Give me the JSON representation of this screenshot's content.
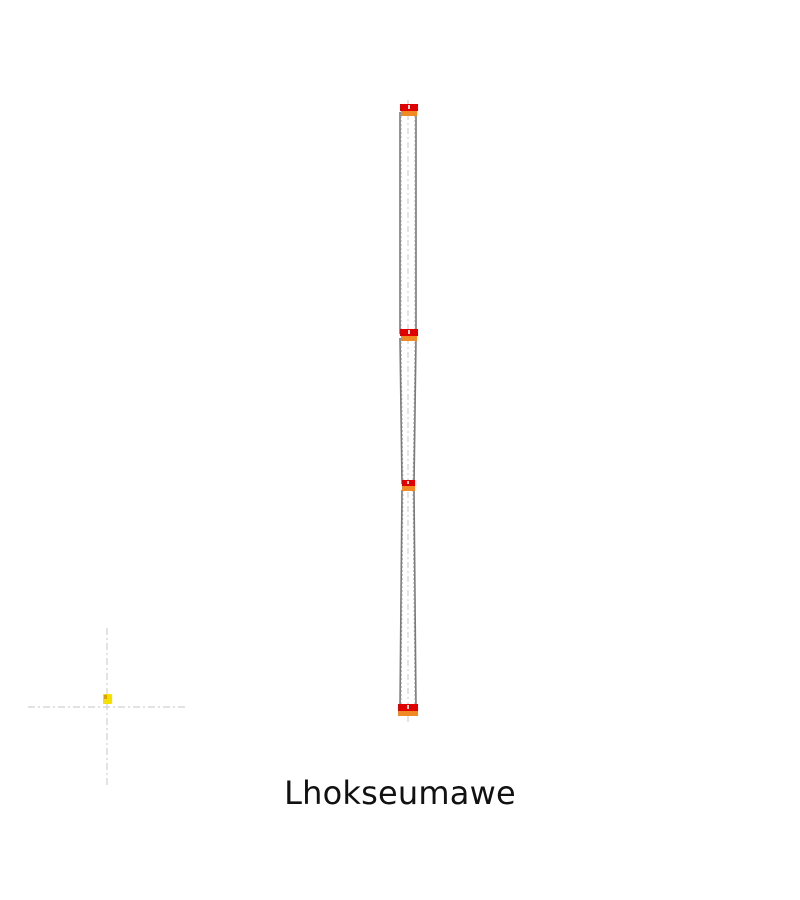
{
  "caption": "Lhokseumawe",
  "colors": {
    "mast_outline": "#7a7a7a",
    "mast_fill": "#ffffff",
    "centerline": "#c8c8c8",
    "light_red": "#e00000",
    "light_orange": "#f08a24",
    "crosshair": "#d0d0d0",
    "reference_marker": "#f5e000"
  },
  "mast": {
    "segments": 3,
    "warning_light_levels": 4
  },
  "icons": {
    "reference_marker": "reference-point-icon",
    "crosshair": "crosshair-icon"
  }
}
